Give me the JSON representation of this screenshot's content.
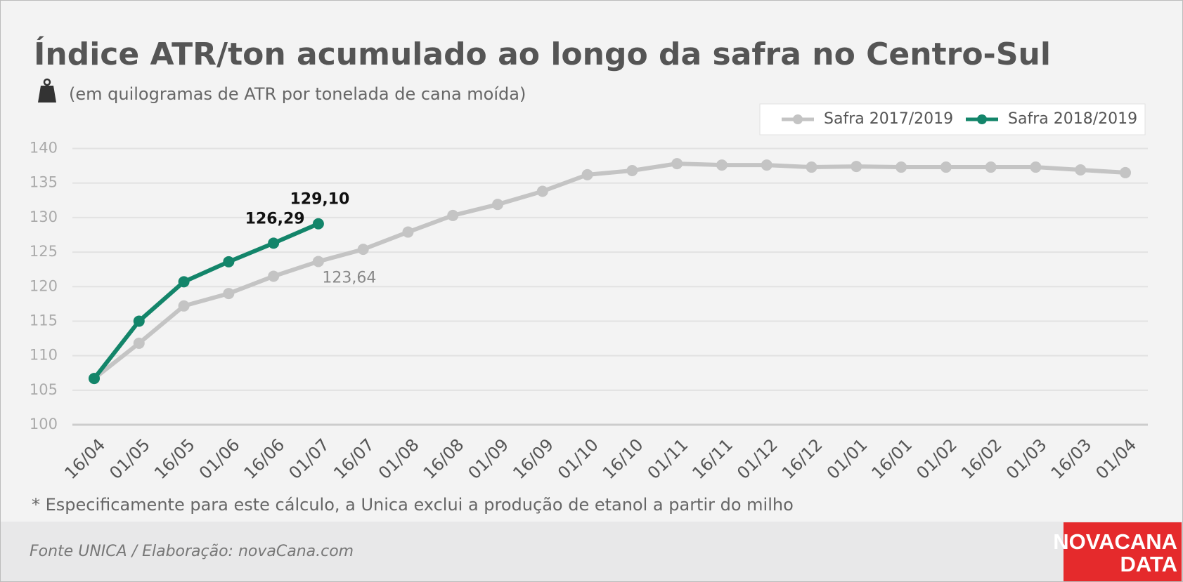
{
  "chart_data": {
    "type": "line",
    "title": "Índice ATR/ton acumulado ao longo da safra no Centro-Sul",
    "subtitle": "(em quilogramas de ATR por tonelada de cana moída)",
    "categories": [
      "16/04",
      "01/05",
      "16/05",
      "01/06",
      "16/06",
      "01/07",
      "16/07",
      "01/08",
      "16/08",
      "01/09",
      "16/09",
      "01/10",
      "16/10",
      "01/11",
      "16/11",
      "01/12",
      "16/12",
      "01/01",
      "16/01",
      "01/02",
      "16/02",
      "01/03",
      "16/03",
      "01/04"
    ],
    "series": [
      {
        "name": "Safra 2017/2019",
        "color": "#c4c4c4",
        "values": [
          106.7,
          111.8,
          117.2,
          119.0,
          121.5,
          123.64,
          125.4,
          127.9,
          130.3,
          131.9,
          133.8,
          136.2,
          136.8,
          137.8,
          137.6,
          137.6,
          137.3,
          137.4,
          137.3,
          137.3,
          137.3,
          137.3,
          136.9,
          136.5
        ],
        "value_labels": [
          null,
          null,
          null,
          null,
          null,
          "123,64",
          null,
          null,
          null,
          null,
          null,
          null,
          null,
          null,
          null,
          null,
          null,
          null,
          null,
          null,
          null,
          null,
          null,
          null
        ]
      },
      {
        "name": "Safra 2018/2019",
        "color": "#13856a",
        "values": [
          106.7,
          115.0,
          120.7,
          123.6,
          126.29,
          129.1,
          null,
          null,
          null,
          null,
          null,
          null,
          null,
          null,
          null,
          null,
          null,
          null,
          null,
          null,
          null,
          null,
          null,
          null
        ],
        "value_labels": [
          null,
          null,
          null,
          null,
          "126,29",
          "129,10",
          null,
          null,
          null,
          null,
          null,
          null,
          null,
          null,
          null,
          null,
          null,
          null,
          null,
          null,
          null,
          null,
          null,
          null
        ]
      }
    ],
    "ylim": [
      100,
      140
    ],
    "yticks": [
      100,
      105,
      110,
      115,
      120,
      125,
      130,
      135,
      140
    ],
    "grid": true,
    "legend": "top-right",
    "footnote": "* Especificamente para este cálculo, a Unica exclui a produção de etanol a partir do milho",
    "source": "Fonte UNICA / Elaboração: novaCana.com",
    "logo": [
      "NOVACANA",
      "DATA"
    ]
  }
}
